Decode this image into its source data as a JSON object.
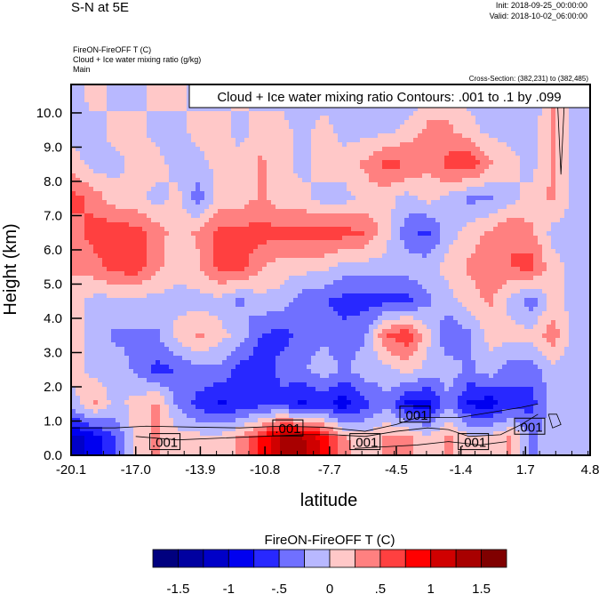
{
  "header": {
    "title": "S-N at 5E",
    "init": "Init: 2018-09-25_00:00:00",
    "valid": "Valid: 2018-10-02_06:00:00",
    "field1": "FireON-FireOFF T   (C)",
    "field2": "Cloud + Ice water mixing ratio   (g/kg)",
    "domain": "Main",
    "cross_section": "Cross-Section: (382,231) to (382,485)"
  },
  "chart_data": {
    "type": "heatmap",
    "title": "S-N at 5E",
    "contour_info": "Cloud + Ice water mixing ratio Contours: .001 to .1 by .099",
    "xlabel": "latitude",
    "ylabel": "Height (km)",
    "xlim": [
      -20.1,
      4.8
    ],
    "ylim": [
      0,
      10.83
    ],
    "xticks": [
      "-20.1",
      "-17.0",
      "-13.9",
      "-10.8",
      "-7.7",
      "-4.5",
      "-1.4",
      "1.7",
      "4.8"
    ],
    "xtick_values": [
      -20.1,
      -17.0,
      -13.9,
      -10.8,
      -7.7,
      -4.5,
      -1.4,
      1.7,
      4.8
    ],
    "yticks": [
      "0.0",
      "1.0",
      "2.0",
      "3.0",
      "4.0",
      "5.0",
      "6.0",
      "7.0",
      "8.0",
      "9.0",
      "10.0"
    ],
    "ytick_values": [
      0,
      1,
      2,
      3,
      4,
      5,
      6,
      7,
      8,
      9,
      10
    ],
    "grid_lat": [
      -20,
      -19,
      -18,
      -17,
      -16,
      -15,
      -14,
      -13,
      -12,
      -11,
      -10,
      -9,
      -8,
      -7,
      -6,
      -5,
      -4,
      -3,
      -2,
      -1,
      0,
      1,
      2,
      3,
      4
    ],
    "grid_height": [
      0.5,
      1.5,
      2.5,
      3.5,
      4.5,
      5.5,
      6.5,
      7.5,
      8.5,
      9.5,
      10.5
    ],
    "values": [
      [
        -1.1,
        -0.9,
        -0.5,
        0.1,
        0.3,
        0.1,
        0.1,
        0.1,
        0.3,
        0.8,
        1.3,
        1.3,
        0.9,
        0.3,
        0.1,
        0.3,
        0.3,
        0.1,
        0.3,
        0.1,
        0.1,
        0.3,
        -0.3,
        -0.1,
        -0.1
      ],
      [
        -0.1,
        0.3,
        -0.1,
        0.1,
        0.3,
        -0.3,
        -0.6,
        -0.8,
        -0.7,
        -0.6,
        -0.6,
        -0.8,
        -0.7,
        -0.9,
        -0.6,
        -0.3,
        -0.8,
        -0.9,
        -0.3,
        -0.8,
        -0.9,
        -0.6,
        -0.6,
        -0.1,
        -0.1
      ],
      [
        0.1,
        -0.1,
        -0.1,
        -0.3,
        -0.6,
        -0.5,
        -0.3,
        -0.3,
        -0.6,
        -0.7,
        -0.4,
        -0.3,
        -0.1,
        -0.3,
        -0.1,
        -0.1,
        0.1,
        -0.1,
        -0.1,
        -0.3,
        -0.1,
        -0.4,
        -0.4,
        -0.1,
        -0.1
      ],
      [
        0.1,
        -0.1,
        -0.3,
        -0.3,
        -0.3,
        0.1,
        0.3,
        0.1,
        -0.1,
        -0.5,
        -0.6,
        -0.4,
        -0.3,
        -0.4,
        -0.3,
        0.5,
        0.7,
        0.1,
        -0.5,
        -0.3,
        0.1,
        0.1,
        0.1,
        0.4,
        -0.1
      ],
      [
        0.1,
        -0.1,
        -0.1,
        -0.1,
        -0.1,
        -0.1,
        -0.1,
        -0.1,
        -0.3,
        -0.1,
        -0.1,
        -0.4,
        -0.5,
        -0.6,
        -0.6,
        -0.6,
        -0.6,
        -0.3,
        -0.1,
        0.1,
        0.3,
        -0.1,
        -0.4,
        0.1,
        -0.1
      ],
      [
        0.3,
        0.4,
        0.6,
        0.7,
        0.3,
        0.1,
        0.2,
        0.6,
        0.6,
        0.3,
        0.1,
        0.1,
        0.1,
        -0.1,
        -0.1,
        -0.1,
        -0.1,
        -0.1,
        0.1,
        0.3,
        0.5,
        0.5,
        0.6,
        0.1,
        -0.1
      ],
      [
        0.4,
        0.6,
        0.7,
        0.6,
        0.4,
        0.1,
        0.3,
        0.6,
        0.6,
        0.6,
        0.6,
        0.6,
        0.6,
        0.6,
        0.5,
        0.1,
        -0.4,
        -0.6,
        -0.1,
        0.1,
        0.3,
        0.5,
        0.3,
        -0.1,
        -0.1
      ],
      [
        0.6,
        0.4,
        0.1,
        0.1,
        -0.1,
        0.1,
        -0.4,
        0.1,
        0.1,
        0.3,
        0.1,
        0.1,
        -0.1,
        -0.1,
        0.1,
        0.1,
        -0.1,
        0.1,
        -0.1,
        -0.3,
        -0.3,
        -0.1,
        0.1,
        0.3,
        -0.1
      ],
      [
        0.1,
        -0.1,
        -0.1,
        0.1,
        0.1,
        -0.1,
        -0.1,
        0.1,
        0.1,
        0.3,
        0.1,
        -0.1,
        0.1,
        0.1,
        0.3,
        0.6,
        0.5,
        0.3,
        0.6,
        0.7,
        0.3,
        0.1,
        -0.1,
        0.3,
        -0.1
      ],
      [
        -0.1,
        -0.1,
        0.1,
        0.1,
        -0.1,
        -0.1,
        0.1,
        0.1,
        -0.1,
        0.1,
        0.1,
        -0.1,
        0.1,
        -0.1,
        -0.1,
        -0.1,
        0.1,
        0.3,
        0.3,
        0.1,
        -0.1,
        -0.1,
        -0.1,
        0.3,
        -0.1
      ],
      [
        -0.1,
        0.1,
        -0.1,
        -0.1,
        0.1,
        0.1,
        -0.1,
        -0.1,
        0.1,
        -0.1,
        -0.1,
        -0.1,
        -0.1,
        -0.1,
        -0.1,
        -0.1,
        -0.3,
        0.1,
        0.1,
        -0.1,
        -0.1,
        -0.1,
        -0.3,
        0.3,
        -0.1
      ]
    ],
    "cloud_contours": [
      [
        [
          -20.1,
          0.8
        ],
        [
          -18,
          0.8
        ],
        [
          -16.5,
          0.85
        ],
        [
          -14,
          0.82
        ],
        [
          -12,
          0.8
        ],
        [
          -10,
          0.85
        ],
        [
          -8,
          0.82
        ],
        [
          -6,
          0.7
        ],
        [
          -4.5,
          0.9
        ],
        [
          -3.5,
          1.1
        ],
        [
          -1.5,
          1.1
        ],
        [
          0,
          1.25
        ],
        [
          1.5,
          1.4
        ],
        [
          2.3,
          1.5
        ]
      ],
      [
        [
          -17,
          0.55
        ],
        [
          -15,
          0.45
        ],
        [
          -13,
          0.5
        ],
        [
          -11,
          0.55
        ],
        [
          -9,
          0.6
        ],
        [
          -7.5,
          0.6
        ],
        [
          -6,
          0.55
        ],
        [
          -4.5,
          0.7
        ],
        [
          -3,
          0.8
        ],
        [
          -2,
          0.75
        ],
        [
          -1,
          0.55
        ],
        [
          0.5,
          0.6
        ],
        [
          1.5,
          0.9
        ],
        [
          2.3,
          1.2
        ]
      ],
      [
        [
          -6.5,
          0.2
        ],
        [
          -5,
          0.25
        ],
        [
          -3.5,
          0.3
        ],
        [
          -2,
          0.4
        ],
        [
          -0.5,
          0.3
        ],
        [
          0.8,
          0.4
        ]
      ],
      [
        [
          2.8,
          1.2
        ],
        [
          3.0,
          0.8
        ],
        [
          3.4,
          0.9
        ],
        [
          3.2,
          1.2
        ],
        [
          2.8,
          1.2
        ]
      ],
      [
        [
          3.2,
          10.8
        ],
        [
          3.3,
          9.5
        ],
        [
          3.4,
          8.2
        ],
        [
          3.5,
          9.5
        ],
        [
          3.6,
          10.8
        ]
      ]
    ],
    "contour_labels": [
      {
        "text": ".001",
        "lat": -15.6,
        "h": 0.4
      },
      {
        "text": ".001",
        "lat": -9.7,
        "h": 0.8
      },
      {
        "text": ".001",
        "lat": -6.0,
        "h": 0.4
      },
      {
        "text": ".001",
        "lat": -3.6,
        "h": 1.2
      },
      {
        "text": ".001",
        "lat": -0.8,
        "h": 0.4
      },
      {
        "text": ".001",
        "lat": 1.9,
        "h": 0.85
      }
    ],
    "colorbar": {
      "title": "FireON-FireOFF T  (C)",
      "levels": [
        -1.5,
        -1.25,
        -1,
        -0.75,
        -0.5,
        -0.25,
        0,
        0.25,
        0.5,
        0.75,
        1,
        1.25,
        1.5
      ],
      "labels": [
        "-1.5",
        "-1",
        "-.5",
        "0",
        ".5",
        "1",
        "1.5"
      ],
      "label_levels": [
        -1.5,
        -1,
        -0.5,
        0,
        0.5,
        1,
        1.5
      ],
      "colors": [
        "#00007f",
        "#0000a0",
        "#0000c8",
        "#0000f0",
        "#2828ff",
        "#7070ff",
        "#b8b8ff",
        "#ffc8c8",
        "#ff8080",
        "#ff4040",
        "#ff0000",
        "#d00000",
        "#a80000",
        "#800000"
      ]
    }
  }
}
